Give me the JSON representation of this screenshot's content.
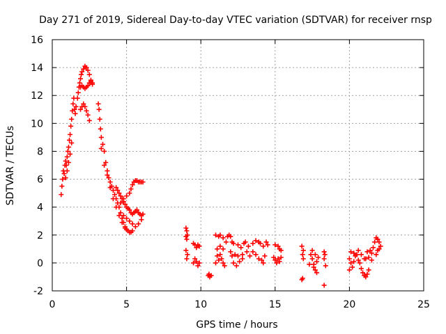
{
  "chart_data": {
    "type": "scatter",
    "title": "Day 271 of 2019, Sidereal Day-to-day VTEC variation (SDTVAR) for receiver rnsp",
    "xlabel": "GPS time / hours",
    "ylabel": "SDTVAR / TECUs",
    "xlim": [
      0,
      25
    ],
    "ylim": [
      -2,
      16
    ],
    "xticks": [
      0,
      5,
      10,
      15,
      20,
      25
    ],
    "yticks": [
      -2,
      0,
      2,
      4,
      6,
      8,
      10,
      12,
      14,
      16
    ],
    "grid": true,
    "marker": "+",
    "series": [
      {
        "name": "SDTVAR",
        "color": "#ff0000",
        "points": [
          [
            0.6,
            4.9
          ],
          [
            0.65,
            5.5
          ],
          [
            0.7,
            6.0
          ],
          [
            0.75,
            6.6
          ],
          [
            0.8,
            6.4
          ],
          [
            0.85,
            7.0
          ],
          [
            0.9,
            7.3
          ],
          [
            0.95,
            7.0
          ],
          [
            1.0,
            7.6
          ],
          [
            1.05,
            8.0
          ],
          [
            1.1,
            8.3
          ],
          [
            1.15,
            8.8
          ],
          [
            1.2,
            9.2
          ],
          [
            1.25,
            9.8
          ],
          [
            1.3,
            10.3
          ],
          [
            1.35,
            10.9
          ],
          [
            1.4,
            11.4
          ],
          [
            1.45,
            11.8
          ],
          [
            0.9,
            6.1
          ],
          [
            1.0,
            6.6
          ],
          [
            1.1,
            7.2
          ],
          [
            1.2,
            7.8
          ],
          [
            1.3,
            8.6
          ],
          [
            1.5,
            11.0
          ],
          [
            1.55,
            10.7
          ],
          [
            1.6,
            11.2
          ],
          [
            1.7,
            11.8
          ],
          [
            1.75,
            12.2
          ],
          [
            1.8,
            12.6
          ],
          [
            1.85,
            12.9
          ],
          [
            1.9,
            13.2
          ],
          [
            1.95,
            13.5
          ],
          [
            2.0,
            13.7
          ],
          [
            2.1,
            13.9
          ],
          [
            2.2,
            14.1
          ],
          [
            2.3,
            14.0
          ],
          [
            2.4,
            13.8
          ],
          [
            2.5,
            13.5
          ],
          [
            2.6,
            13.1
          ],
          [
            2.7,
            12.8
          ],
          [
            1.9,
            12.6
          ],
          [
            2.0,
            12.7
          ],
          [
            2.1,
            12.6
          ],
          [
            2.2,
            12.5
          ],
          [
            2.3,
            12.6
          ],
          [
            2.4,
            12.7
          ],
          [
            2.5,
            12.9
          ],
          [
            2.6,
            13.0
          ],
          [
            2.7,
            12.9
          ],
          [
            1.9,
            11.0
          ],
          [
            2.0,
            11.2
          ],
          [
            2.1,
            11.4
          ],
          [
            2.2,
            11.2
          ],
          [
            2.3,
            10.9
          ],
          [
            2.4,
            10.6
          ],
          [
            2.5,
            10.2
          ],
          [
            3.1,
            11.4
          ],
          [
            3.15,
            11.0
          ],
          [
            3.2,
            10.3
          ],
          [
            3.25,
            9.6
          ],
          [
            3.3,
            9.0
          ],
          [
            3.4,
            8.5
          ],
          [
            3.5,
            8.0
          ],
          [
            3.6,
            7.2
          ],
          [
            3.7,
            6.6
          ],
          [
            3.8,
            6.1
          ],
          [
            3.9,
            5.8
          ],
          [
            4.0,
            5.5
          ],
          [
            4.1,
            5.2
          ],
          [
            4.2,
            4.9
          ],
          [
            4.3,
            4.6
          ],
          [
            4.4,
            4.3
          ],
          [
            4.5,
            4.0
          ],
          [
            4.6,
            3.6
          ],
          [
            4.7,
            3.2
          ],
          [
            4.8,
            2.9
          ],
          [
            4.9,
            2.6
          ],
          [
            5.0,
            2.4
          ],
          [
            5.1,
            2.3
          ],
          [
            5.2,
            2.2
          ],
          [
            5.3,
            2.2
          ],
          [
            5.4,
            2.3
          ],
          [
            3.3,
            8.2
          ],
          [
            3.5,
            7.0
          ],
          [
            3.7,
            6.3
          ],
          [
            3.9,
            5.4
          ],
          [
            4.1,
            4.6
          ],
          [
            4.3,
            4.0
          ],
          [
            4.5,
            3.4
          ],
          [
            4.7,
            2.9
          ],
          [
            4.9,
            2.5
          ],
          [
            4.3,
            5.4
          ],
          [
            4.4,
            5.2
          ],
          [
            4.5,
            5.0
          ],
          [
            4.6,
            4.8
          ],
          [
            4.7,
            4.6
          ],
          [
            4.8,
            4.4
          ],
          [
            4.9,
            4.2
          ],
          [
            5.0,
            4.0
          ],
          [
            5.1,
            3.9
          ],
          [
            5.2,
            3.8
          ],
          [
            5.3,
            3.6
          ],
          [
            5.4,
            3.5
          ],
          [
            5.5,
            3.6
          ],
          [
            5.6,
            3.7
          ],
          [
            5.7,
            3.8
          ],
          [
            5.8,
            3.6
          ],
          [
            5.9,
            3.5
          ],
          [
            6.0,
            3.4
          ],
          [
            6.1,
            3.5
          ],
          [
            4.6,
            4.3
          ],
          [
            4.8,
            4.6
          ],
          [
            5.0,
            4.8
          ],
          [
            5.2,
            5.0
          ],
          [
            5.3,
            5.3
          ],
          [
            5.4,
            5.6
          ],
          [
            5.5,
            5.8
          ],
          [
            5.6,
            5.9
          ],
          [
            5.7,
            5.9
          ],
          [
            5.8,
            5.8
          ],
          [
            5.9,
            5.8
          ],
          [
            6.0,
            5.8
          ],
          [
            6.1,
            5.8
          ],
          [
            4.8,
            3.4
          ],
          [
            5.0,
            3.2
          ],
          [
            5.2,
            3.0
          ],
          [
            5.4,
            2.8
          ],
          [
            5.6,
            2.6
          ],
          [
            5.8,
            2.8
          ],
          [
            6.0,
            3.1
          ],
          [
            9.0,
            2.5
          ],
          [
            9.05,
            2.3
          ],
          [
            9.1,
            2.0
          ],
          [
            9.0,
            1.9
          ],
          [
            9.05,
            1.7
          ],
          [
            9.0,
            0.9
          ],
          [
            9.1,
            0.6
          ],
          [
            9.05,
            0.3
          ],
          [
            9.5,
            1.4
          ],
          [
            9.6,
            1.3
          ],
          [
            9.7,
            1.1
          ],
          [
            9.8,
            1.3
          ],
          [
            9.9,
            1.2
          ],
          [
            9.6,
            0.3
          ],
          [
            9.7,
            0.1
          ],
          [
            9.8,
            -0.2
          ],
          [
            9.9,
            0.0
          ],
          [
            9.5,
            0.0
          ],
          [
            10.5,
            -0.9
          ],
          [
            10.6,
            -1.0
          ],
          [
            10.7,
            -0.9
          ],
          [
            10.55,
            -0.8
          ],
          [
            11.0,
            2.0
          ],
          [
            11.2,
            1.9
          ],
          [
            11.3,
            2.0
          ],
          [
            11.5,
            1.8
          ],
          [
            11.1,
            0.5
          ],
          [
            11.2,
            0.2
          ],
          [
            11.3,
            0.6
          ],
          [
            11.4,
            0.3
          ],
          [
            11.5,
            0.0
          ],
          [
            11.6,
            -0.2
          ],
          [
            11.0,
            0.0
          ],
          [
            11.1,
            1.0
          ],
          [
            11.3,
            1.2
          ],
          [
            11.5,
            1.0
          ],
          [
            11.7,
            1.5
          ],
          [
            11.8,
            1.9
          ],
          [
            11.9,
            2.0
          ],
          [
            12.0,
            1.9
          ],
          [
            12.1,
            1.5
          ],
          [
            12.2,
            1.4
          ],
          [
            12.0,
            0.8
          ],
          [
            12.1,
            0.5
          ],
          [
            12.3,
            0.6
          ],
          [
            12.5,
            0.5
          ],
          [
            12.2,
            0.0
          ],
          [
            12.4,
            -0.2
          ],
          [
            12.6,
            0.1
          ],
          [
            12.8,
            0.6
          ],
          [
            12.5,
            1.3
          ],
          [
            12.7,
            1.1
          ],
          [
            12.9,
            1.4
          ],
          [
            13.0,
            1.5
          ],
          [
            13.2,
            1.2
          ],
          [
            12.8,
            0.3
          ],
          [
            13.1,
            0.8
          ],
          [
            13.3,
            0.5
          ],
          [
            13.5,
            1.4
          ],
          [
            13.7,
            1.6
          ],
          [
            13.9,
            1.5
          ],
          [
            13.5,
            0.8
          ],
          [
            13.7,
            0.6
          ],
          [
            13.9,
            0.3
          ],
          [
            14.1,
            0.2
          ],
          [
            14.3,
            0.5
          ],
          [
            14.0,
            1.4
          ],
          [
            14.2,
            1.2
          ],
          [
            14.4,
            1.5
          ],
          [
            14.5,
            1.3
          ],
          [
            14.2,
            0.0
          ],
          [
            14.9,
            0.4
          ],
          [
            15.0,
            0.2
          ],
          [
            15.1,
            0.0
          ],
          [
            15.2,
            0.3
          ],
          [
            15.3,
            0.1
          ],
          [
            15.4,
            0.4
          ],
          [
            15.2,
            1.2
          ],
          [
            15.3,
            1.0
          ],
          [
            15.4,
            0.9
          ],
          [
            15.0,
            1.3
          ],
          [
            16.8,
            1.2
          ],
          [
            16.9,
            0.9
          ],
          [
            16.85,
            0.6
          ],
          [
            16.9,
            0.3
          ],
          [
            16.8,
            -1.2
          ],
          [
            16.85,
            -1.1
          ],
          [
            17.3,
            -0.1
          ],
          [
            17.4,
            0.6
          ],
          [
            17.5,
            0.3
          ],
          [
            17.6,
            -0.1
          ],
          [
            17.7,
            -0.5
          ],
          [
            17.8,
            -0.7
          ],
          [
            17.5,
            0.9
          ],
          [
            17.7,
            0.6
          ],
          [
            17.9,
            0.4
          ],
          [
            17.6,
            -0.3
          ],
          [
            17.8,
            0.1
          ],
          [
            18.3,
            0.8
          ],
          [
            18.35,
            0.6
          ],
          [
            18.3,
            0.3
          ],
          [
            18.4,
            -0.2
          ],
          [
            18.3,
            -1.6
          ],
          [
            20.0,
            0.3
          ],
          [
            20.1,
            0.0
          ],
          [
            20.2,
            -0.3
          ],
          [
            20.3,
            0.1
          ],
          [
            20.4,
            0.5
          ],
          [
            20.0,
            -0.5
          ],
          [
            20.1,
            0.8
          ],
          [
            20.3,
            0.7
          ],
          [
            20.5,
            0.6
          ],
          [
            20.6,
            0.2
          ],
          [
            20.7,
            0.0
          ],
          [
            20.8,
            -0.4
          ],
          [
            20.9,
            -0.7
          ],
          [
            21.0,
            -0.9
          ],
          [
            21.1,
            -1.0
          ],
          [
            21.2,
            -0.8
          ],
          [
            21.3,
            -0.5
          ],
          [
            21.0,
            0.3
          ],
          [
            21.2,
            0.8
          ],
          [
            21.4,
            0.9
          ],
          [
            21.5,
            0.7
          ],
          [
            21.6,
            1.1
          ],
          [
            21.7,
            1.5
          ],
          [
            21.8,
            1.8
          ],
          [
            21.9,
            1.7
          ],
          [
            22.0,
            1.5
          ],
          [
            22.1,
            1.2
          ],
          [
            21.8,
            0.6
          ],
          [
            21.9,
            0.9
          ],
          [
            22.0,
            1.0
          ],
          [
            20.6,
            0.9
          ],
          [
            20.8,
            0.6
          ],
          [
            21.1,
            0.3
          ],
          [
            21.3,
            0.4
          ],
          [
            21.5,
            0.2
          ]
        ]
      }
    ]
  }
}
